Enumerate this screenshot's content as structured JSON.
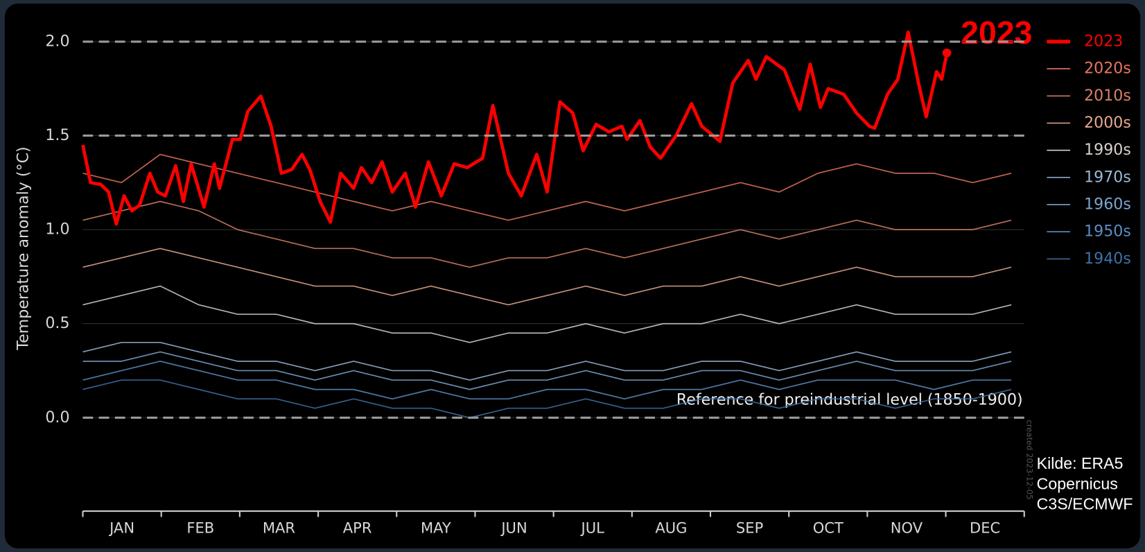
{
  "chart_data": {
    "type": "line",
    "y_label": "Temperature anomaly (°C)",
    "highlight_label": "2023",
    "reference_label": "Reference for preindustrial level (1850-1900)",
    "created_note": "created 2023-12-05",
    "source": [
      "Kilde: ERA5",
      "Copernicus",
      "C3S/ECMWF"
    ],
    "categories": [
      "JAN",
      "FEB",
      "MAR",
      "APR",
      "MAY",
      "JUN",
      "JUL",
      "AUG",
      "SEP",
      "OCT",
      "NOV",
      "DEC"
    ],
    "xlim": [
      1,
      366
    ],
    "ylim": [
      -0.5,
      2.15
    ],
    "yticks": [
      {
        "value": 0,
        "label": "0.0"
      },
      {
        "value": 0.5,
        "label": "0.5"
      },
      {
        "value": 1,
        "label": "1.0"
      },
      {
        "value": 1.5,
        "label": "1.5"
      },
      {
        "value": 2,
        "label": "2.0"
      }
    ],
    "reference_lines": [
      0,
      1.5,
      2
    ],
    "grid": true,
    "legend": "right",
    "x": [
      1,
      16,
      31,
      46,
      61,
      76,
      91,
      106,
      121,
      136,
      151,
      166,
      181,
      196,
      211,
      226,
      241,
      256,
      271,
      286,
      301,
      316,
      331,
      346,
      361
    ],
    "series": [
      {
        "name": "2023",
        "color": "#ff0000",
        "x": [
          1,
          4,
          8,
          11,
          14,
          17,
          20,
          23,
          27,
          30,
          33,
          37,
          40,
          43,
          48,
          52,
          54,
          59,
          62,
          65,
          70,
          74,
          78,
          82,
          86,
          89,
          93,
          97,
          101,
          106,
          109,
          113,
          117,
          121,
          126,
          130,
          135,
          140,
          145,
          150,
          156,
          160,
          166,
          171,
          177,
          181,
          186,
          191,
          195,
          200,
          205,
          210,
          212,
          217,
          221,
          225,
          231,
          237,
          241,
          248,
          253,
          259,
          262,
          266,
          273,
          279,
          283,
          287,
          290,
          296,
          301,
          306,
          308,
          313,
          317,
          321,
          325,
          328,
          332,
          334,
          336
        ],
        "values": [
          1.45,
          1.25,
          1.24,
          1.2,
          1.03,
          1.18,
          1.1,
          1.13,
          1.3,
          1.2,
          1.18,
          1.34,
          1.15,
          1.35,
          1.12,
          1.35,
          1.22,
          1.48,
          1.48,
          1.63,
          1.71,
          1.55,
          1.3,
          1.32,
          1.4,
          1.32,
          1.15,
          1.04,
          1.3,
          1.22,
          1.33,
          1.25,
          1.36,
          1.2,
          1.3,
          1.12,
          1.36,
          1.18,
          1.35,
          1.33,
          1.38,
          1.66,
          1.3,
          1.18,
          1.4,
          1.2,
          1.68,
          1.62,
          1.42,
          1.56,
          1.52,
          1.55,
          1.48,
          1.58,
          1.44,
          1.38,
          1.5,
          1.67,
          1.55,
          1.47,
          1.78,
          1.9,
          1.8,
          1.92,
          1.85,
          1.64,
          1.88,
          1.65,
          1.75,
          1.72,
          1.62,
          1.55,
          1.54,
          1.72,
          1.8,
          2.05,
          1.78,
          1.6,
          1.84,
          1.8,
          1.94
        ]
      },
      {
        "name": "2020s",
        "color": "#e8765e",
        "values": [
          1.3,
          1.25,
          1.4,
          1.35,
          1.3,
          1.25,
          1.2,
          1.15,
          1.1,
          1.15,
          1.1,
          1.05,
          1.1,
          1.15,
          1.1,
          1.15,
          1.2,
          1.25,
          1.2,
          1.3,
          1.35,
          1.3,
          1.3,
          1.25,
          1.3
        ]
      },
      {
        "name": "2010s",
        "color": "#d9826a",
        "values": [
          1.05,
          1.1,
          1.15,
          1.1,
          1.0,
          0.95,
          0.9,
          0.9,
          0.85,
          0.85,
          0.8,
          0.85,
          0.85,
          0.9,
          0.85,
          0.9,
          0.95,
          1.0,
          0.95,
          1.0,
          1.05,
          1.0,
          1.0,
          1.0,
          1.05
        ]
      },
      {
        "name": "2000s",
        "color": "#e8a890",
        "values": [
          0.8,
          0.85,
          0.9,
          0.85,
          0.8,
          0.75,
          0.7,
          0.7,
          0.65,
          0.7,
          0.65,
          0.6,
          0.65,
          0.7,
          0.65,
          0.7,
          0.7,
          0.75,
          0.7,
          0.75,
          0.8,
          0.75,
          0.75,
          0.75,
          0.8
        ]
      },
      {
        "name": "1990s",
        "color": "#d8d0cc",
        "values": [
          0.6,
          0.65,
          0.7,
          0.6,
          0.55,
          0.55,
          0.5,
          0.5,
          0.45,
          0.45,
          0.4,
          0.45,
          0.45,
          0.5,
          0.45,
          0.5,
          0.5,
          0.55,
          0.5,
          0.55,
          0.6,
          0.55,
          0.55,
          0.55,
          0.6
        ]
      },
      {
        "name": "1970s",
        "color": "#9ab8d8",
        "values": [
          0.35,
          0.4,
          0.4,
          0.35,
          0.3,
          0.3,
          0.25,
          0.3,
          0.25,
          0.25,
          0.2,
          0.25,
          0.25,
          0.3,
          0.25,
          0.25,
          0.3,
          0.3,
          0.25,
          0.3,
          0.35,
          0.3,
          0.3,
          0.3,
          0.35
        ]
      },
      {
        "name": "1960s",
        "color": "#7aa6d0",
        "values": [
          0.3,
          0.3,
          0.35,
          0.3,
          0.25,
          0.25,
          0.2,
          0.25,
          0.2,
          0.2,
          0.15,
          0.2,
          0.2,
          0.25,
          0.2,
          0.2,
          0.25,
          0.25,
          0.2,
          0.25,
          0.3,
          0.25,
          0.25,
          0.25,
          0.3
        ]
      },
      {
        "name": "1950s",
        "color": "#5c8ec4",
        "values": [
          0.2,
          0.25,
          0.3,
          0.25,
          0.2,
          0.2,
          0.15,
          0.15,
          0.1,
          0.15,
          0.1,
          0.1,
          0.15,
          0.15,
          0.1,
          0.15,
          0.15,
          0.2,
          0.15,
          0.2,
          0.2,
          0.2,
          0.15,
          0.2,
          0.2
        ]
      },
      {
        "name": "1940s",
        "color": "#3f70a8",
        "values": [
          0.15,
          0.2,
          0.2,
          0.15,
          0.1,
          0.1,
          0.05,
          0.1,
          0.05,
          0.05,
          0.0,
          0.05,
          0.05,
          0.1,
          0.05,
          0.05,
          0.1,
          0.1,
          0.05,
          0.1,
          0.1,
          0.05,
          0.1,
          0.1,
          0.15
        ]
      }
    ]
  }
}
